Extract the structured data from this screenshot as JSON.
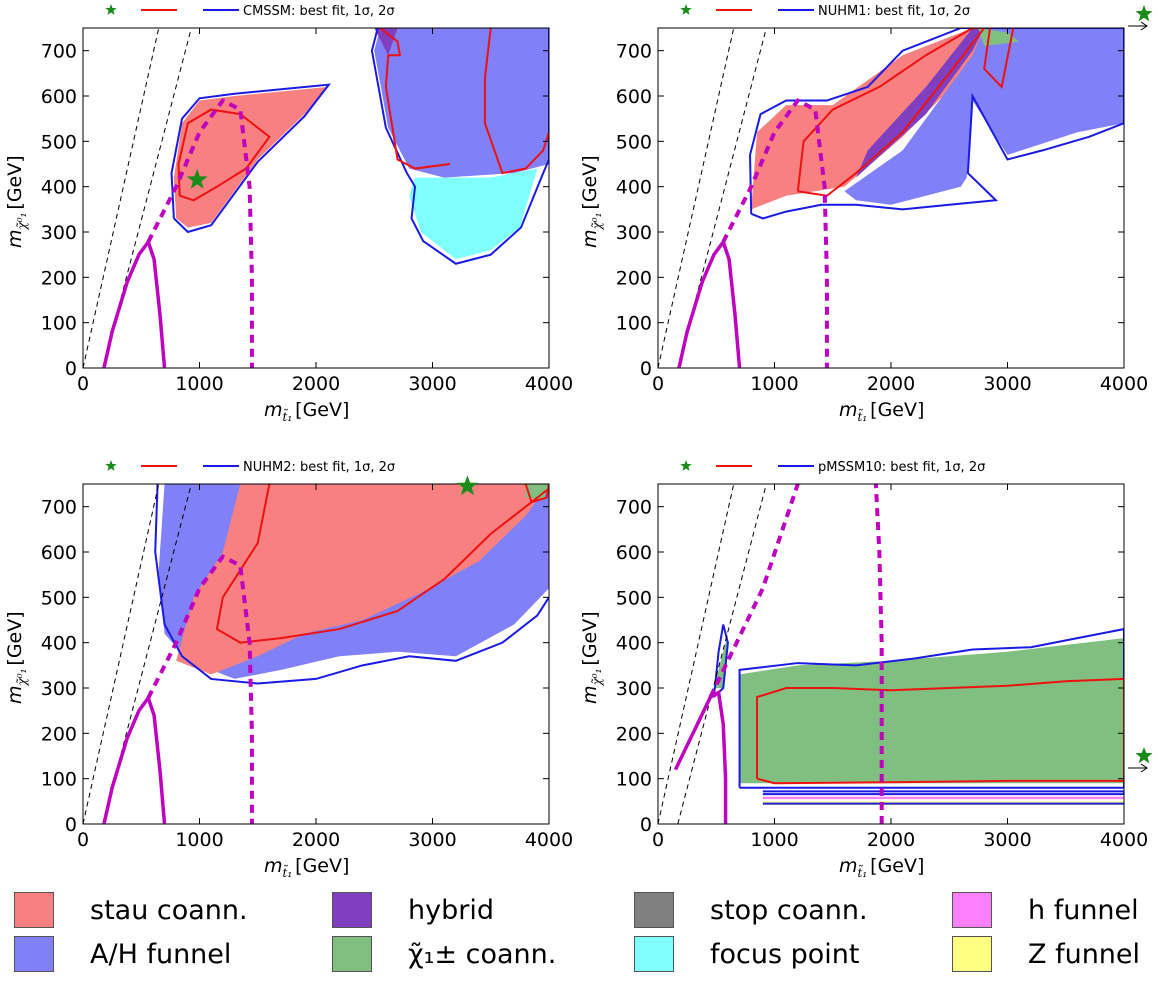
{
  "colors": {
    "stau": "#f88080",
    "ah": "#8080f8",
    "hybrid": "#7f3fbf",
    "chargino": "#80bf80",
    "stop": "#808080",
    "focus": "#80ffff",
    "hfunnel": "#ff80ff",
    "zfunnel": "#ffff80",
    "contour1": "#ee1111",
    "contour2": "#1a1ae6",
    "constraint": "#bf00bf",
    "star": "#1a8c1a"
  },
  "axes": {
    "xlabel_base": "m",
    "xlabel_sub": "t̃₁",
    "xlabel_unit": "[GeV]",
    "ylabel_base": "m",
    "ylabel_sub": "χ̃⁰₁",
    "ylabel_unit": "[GeV]",
    "xticks": [
      "0",
      "1000",
      "2000",
      "3000",
      "4000"
    ],
    "yticks": [
      "0",
      "100",
      "200",
      "300",
      "400",
      "500",
      "600",
      "700"
    ]
  },
  "panels": [
    {
      "id": "cmssm",
      "legend_text": "CMSSM: best fit, 1σ, 2σ"
    },
    {
      "id": "nuhm1",
      "legend_text": "NUHM1: best fit, 1σ, 2σ"
    },
    {
      "id": "nuhm2",
      "legend_text": "NUHM2: best fit, 1σ, 2σ"
    },
    {
      "id": "pmssm10",
      "legend_text": "pMSSM10: best fit, 1σ, 2σ"
    }
  ],
  "legend": [
    {
      "label": "stau coann.",
      "color": "#f88080"
    },
    {
      "label": "A/H funnel",
      "color": "#8080f8"
    },
    {
      "label": "hybrid",
      "color": "#7f3fbf"
    },
    {
      "label": "χ̃₁± coann.",
      "color": "#80bf80"
    },
    {
      "label": "stop coann.",
      "color": "#808080"
    },
    {
      "label": "focus point",
      "color": "#80ffff"
    },
    {
      "label": "h funnel",
      "color": "#ff80ff"
    },
    {
      "label": "Z funnel",
      "color": "#ffff80"
    }
  ],
  "chart_data": [
    {
      "type": "area",
      "title": "CMSSM: best fit, 1σ, 2σ",
      "xlabel": "m_t̃₁ [GeV]",
      "ylabel": "m_χ̃⁰₁ [GeV]",
      "xlim": [
        0,
        4000
      ],
      "ylim": [
        0,
        750
      ],
      "best_fit": [
        980,
        415
      ],
      "regions": [
        {
          "name": "stau coann.",
          "polygon": [
            [
              800,
              330
            ],
            [
              780,
              420
            ],
            [
              850,
              540
            ],
            [
              1000,
              590
            ],
            [
              1300,
              600
            ],
            [
              1700,
              610
            ],
            [
              2100,
              620
            ],
            [
              1900,
              560
            ],
            [
              1500,
              460
            ],
            [
              1100,
              320
            ],
            [
              900,
              310
            ]
          ]
        },
        {
          "name": "A/H funnel",
          "polygon": [
            [
              2550,
              750
            ],
            [
              4000,
              750
            ],
            [
              4000,
              450
            ],
            [
              3700,
              430
            ],
            [
              3100,
              420
            ],
            [
              2800,
              440
            ],
            [
              2620,
              530
            ],
            [
              2500,
              700
            ]
          ]
        },
        {
          "name": "focus point",
          "polygon": [
            [
              2850,
              420
            ],
            [
              3500,
              420
            ],
            [
              3900,
              440
            ],
            [
              3750,
              310
            ],
            [
              3500,
              260
            ],
            [
              3200,
              240
            ],
            [
              2900,
              300
            ],
            [
              2800,
              380
            ]
          ]
        },
        {
          "name": "hybrid",
          "polygon": [
            [
              2500,
              750
            ],
            [
              2700,
              750
            ],
            [
              2620,
              690
            ]
          ]
        }
      ]
    },
    {
      "type": "area",
      "title": "NUHM1: best fit, 1σ, 2σ",
      "xlabel": "m_t̃₁ [GeV]",
      "ylabel": "m_χ̃⁰₁ [GeV]",
      "xlim": [
        0,
        4000
      ],
      "ylim": [
        0,
        750
      ],
      "best_fit": "off-plot (arrow to right)",
      "regions": [
        {
          "name": "stau coann.",
          "polygon": [
            [
              800,
              350
            ],
            [
              850,
              520
            ],
            [
              1100,
              580
            ],
            [
              1500,
              580
            ],
            [
              2100,
              690
            ],
            [
              2700,
              750
            ],
            [
              2900,
              750
            ],
            [
              2600,
              640
            ],
            [
              2100,
              510
            ],
            [
              1600,
              400
            ],
            [
              1100,
              380
            ]
          ]
        },
        {
          "name": "hybrid",
          "polygon": [
            [
              1700,
              420
            ],
            [
              2300,
              560
            ],
            [
              2700,
              700
            ],
            [
              2800,
              750
            ],
            [
              2700,
              750
            ],
            [
              2300,
              620
            ],
            [
              1800,
              480
            ]
          ]
        },
        {
          "name": "A/H funnel",
          "polygon": [
            [
              1600,
              390
            ],
            [
              2100,
              480
            ],
            [
              2700,
              690
            ],
            [
              2800,
              750
            ],
            [
              4000,
              750
            ],
            [
              4000,
              540
            ],
            [
              3600,
              520
            ],
            [
              3000,
              470
            ],
            [
              2700,
              590
            ],
            [
              2650,
              420
            ],
            [
              2600,
              400
            ],
            [
              2300,
              380
            ],
            [
              2000,
              360
            ],
            [
              1700,
              370
            ]
          ]
        },
        {
          "name": "χ̃₁± coann.",
          "polygon": [
            [
              2750,
              750
            ],
            [
              3000,
              740
            ],
            [
              3100,
              720
            ],
            [
              2800,
              710
            ]
          ]
        }
      ]
    },
    {
      "type": "area",
      "title": "NUHM2: best fit, 1σ, 2σ",
      "xlabel": "m_t̃₁ [GeV]",
      "ylabel": "m_χ̃⁰₁ [GeV]",
      "xlim": [
        0,
        4000
      ],
      "ylim": [
        0,
        750
      ],
      "best_fit": [
        3300,
        745
      ],
      "regions": [
        {
          "name": "A/H funnel",
          "polygon": [
            [
              700,
              750
            ],
            [
              950,
              750
            ],
            [
              1400,
              750
            ],
            [
              4000,
              750
            ],
            [
              4000,
              520
            ],
            [
              3700,
              440
            ],
            [
              3200,
              370
            ],
            [
              2700,
              380
            ],
            [
              2200,
              370
            ],
            [
              1700,
              340
            ],
            [
              1300,
              320
            ],
            [
              900,
              360
            ],
            [
              700,
              420
            ],
            [
              650,
              560
            ]
          ]
        },
        {
          "name": "stau coann.",
          "polygon": [
            [
              1350,
              750
            ],
            [
              4000,
              750
            ],
            [
              3800,
              680
            ],
            [
              3400,
              580
            ],
            [
              2900,
              510
            ],
            [
              2400,
              450
            ],
            [
              1900,
              420
            ],
            [
              1500,
              370
            ],
            [
              1100,
              330
            ],
            [
              800,
              360
            ],
            [
              950,
              500
            ],
            [
              1200,
              600
            ]
          ]
        },
        {
          "name": "hybrid",
          "polygon": [
            [
              1850,
              515
            ],
            [
              1900,
              540
            ],
            [
              1800,
              490
            ]
          ]
        },
        {
          "name": "χ̃₁± coann.",
          "polygon": [
            [
              3800,
              750
            ],
            [
              4000,
              750
            ],
            [
              3950,
              715
            ],
            [
              3800,
              720
            ]
          ]
        }
      ]
    },
    {
      "type": "area",
      "title": "pMSSM10: best fit, 1σ, 2σ",
      "xlabel": "m_t̃₁ [GeV]",
      "ylabel": "m_χ̃⁰₁ [GeV]",
      "xlim": [
        0,
        4000
      ],
      "ylim": [
        0,
        750
      ],
      "best_fit": "off-plot (arrow to right)",
      "regions": [
        {
          "name": "χ̃₁± coann.",
          "polygon": [
            [
              700,
              330
            ],
            [
              1200,
              350
            ],
            [
              2000,
              360
            ],
            [
              3000,
              380
            ],
            [
              4000,
              410
            ],
            [
              4000,
              90
            ],
            [
              700,
              90
            ]
          ]
        },
        {
          "name": "χ̃₁± coann.",
          "polygon": [
            [
              480,
              300
            ],
            [
              600,
              420
            ],
            [
              560,
              300
            ]
          ]
        },
        {
          "name": "h funnel",
          "polygon": [
            [
              900,
              55
            ],
            [
              4000,
              55
            ],
            [
              4000,
              60
            ],
            [
              900,
              60
            ]
          ]
        },
        {
          "name": "Z funnel",
          "polygon": [
            [
              900,
              42
            ],
            [
              4000,
              42
            ],
            [
              4000,
              50
            ],
            [
              900,
              50
            ]
          ]
        }
      ]
    }
  ]
}
